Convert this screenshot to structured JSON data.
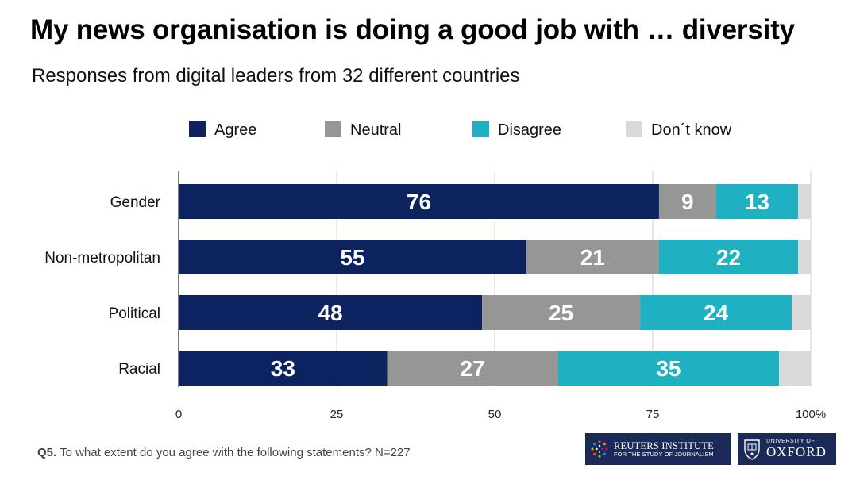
{
  "chart_data": {
    "type": "bar",
    "orientation": "horizontal",
    "stacked": true,
    "title": "My news organisation is doing a good job with … diversity",
    "subtitle": "Responses from digital leaders from 32 different countries",
    "categories": [
      "Gender",
      "Non-metropolitan",
      "Political",
      "Racial"
    ],
    "series": [
      {
        "name": "Agree",
        "color": "#0d2360",
        "values": [
          76,
          55,
          48,
          33
        ]
      },
      {
        "name": "Neutral",
        "color": "#969696",
        "values": [
          9,
          21,
          25,
          27
        ]
      },
      {
        "name": "Disagree",
        "color": "#1fb1c2",
        "values": [
          13,
          22,
          24,
          35
        ]
      },
      {
        "name": "Don´t know",
        "color": "#d9d9d9",
        "values": [
          2,
          2,
          3,
          5
        ]
      }
    ],
    "xlim": [
      0,
      100
    ],
    "xticks": [
      0,
      25,
      50,
      75,
      100
    ],
    "xtick_labels": [
      "0",
      "25",
      "50",
      "75",
      "100%"
    ],
    "grid": true,
    "legend_position": "top",
    "label_series": [
      "Agree",
      "Neutral",
      "Disagree"
    ]
  },
  "footnote": {
    "q": "Q5.",
    "text": "To what extent do you agree with the following statements? N=227"
  },
  "logos": {
    "reuters_main": "REUTERS INSTITUTE",
    "reuters_sub": "FOR THE STUDY OF JOURNALISM",
    "oxford_small": "UNIVERSITY OF",
    "oxford_main": "OXFORD"
  }
}
